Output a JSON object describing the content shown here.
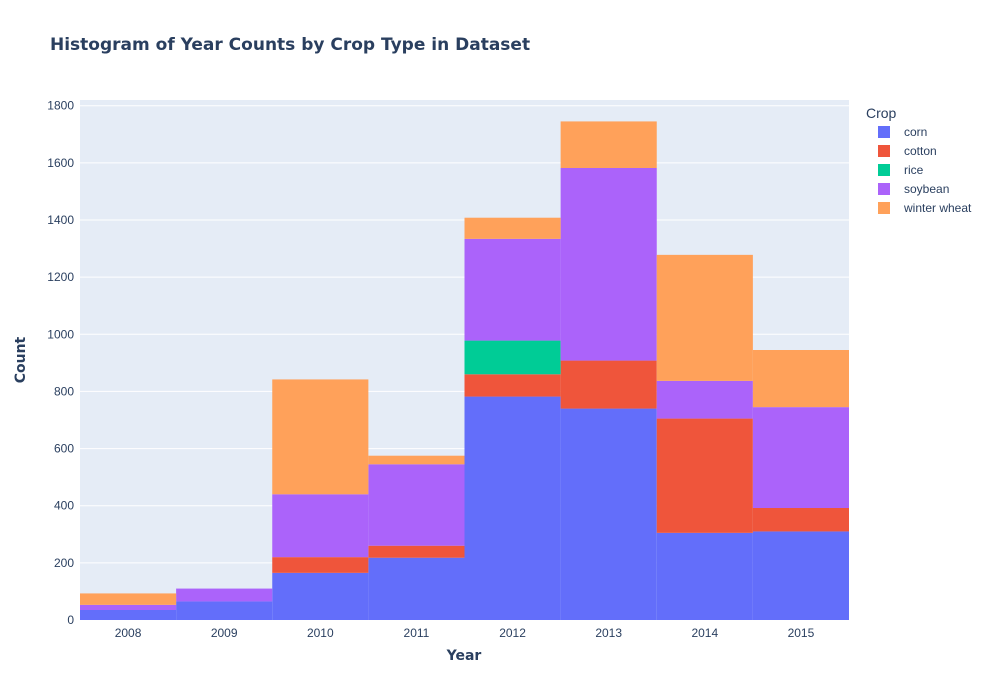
{
  "chart_data": {
    "type": "bar",
    "stacked": true,
    "title": "Histogram of Year Counts by Crop Type in Dataset",
    "xlabel": "Year",
    "ylabel": "Count",
    "categories": [
      "2008",
      "2009",
      "2010",
      "2011",
      "2012",
      "2013",
      "2014",
      "2015"
    ],
    "ylim": [
      0,
      1820
    ],
    "yticks": [
      0,
      200,
      400,
      600,
      800,
      1000,
      1200,
      1400,
      1600,
      1800
    ],
    "ytick_labels": [
      "0",
      "200",
      "400",
      "600",
      "800",
      "1000",
      "1200",
      "1400",
      "1600",
      "1800"
    ],
    "legend_title": "Crop",
    "legend_position": "top-right",
    "grid": true,
    "background": "#e5ecf6",
    "series": [
      {
        "name": "corn",
        "color": "#636efa",
        "values": [
          35,
          65,
          165,
          218,
          782,
          740,
          305,
          310
        ]
      },
      {
        "name": "cotton",
        "color": "#ef553b",
        "values": [
          0,
          0,
          55,
          42,
          78,
          168,
          400,
          82
        ]
      },
      {
        "name": "rice",
        "color": "#00cc96",
        "values": [
          0,
          0,
          0,
          0,
          118,
          0,
          0,
          0
        ]
      },
      {
        "name": "soybean",
        "color": "#ab63fa",
        "values": [
          18,
          45,
          220,
          285,
          356,
          674,
          132,
          353
        ]
      },
      {
        "name": "winter wheat",
        "color": "#ffa15a",
        "values": [
          40,
          0,
          402,
          30,
          74,
          163,
          441,
          200
        ]
      }
    ]
  }
}
